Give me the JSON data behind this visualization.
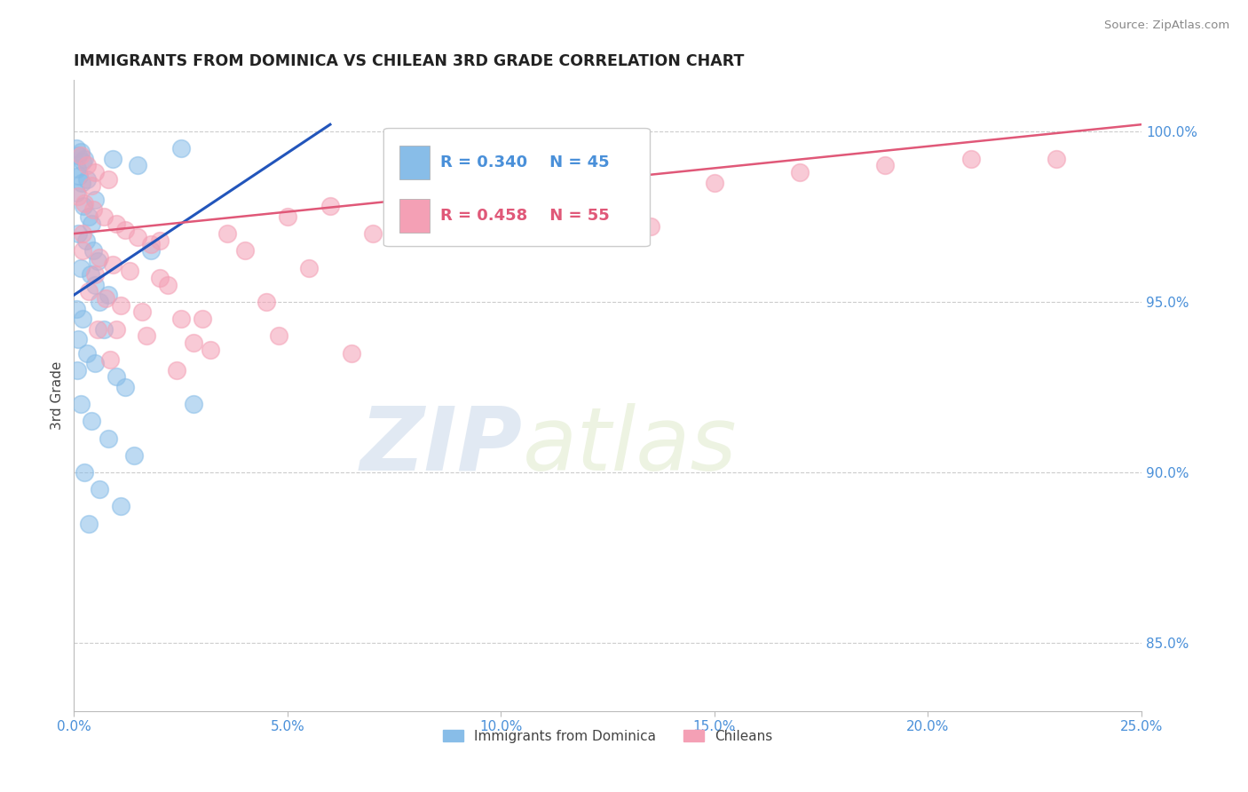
{
  "title": "IMMIGRANTS FROM DOMINICA VS CHILEAN 3RD GRADE CORRELATION CHART",
  "source": "Source: ZipAtlas.com",
  "ylabel": "3rd Grade",
  "xlim": [
    0.0,
    25.0
  ],
  "ylim": [
    83.0,
    101.5
  ],
  "yticks_right": [
    85.0,
    90.0,
    95.0,
    100.0
  ],
  "ytick_labels_right": [
    "85.0%",
    "90.0%",
    "95.0%",
    "100.0%"
  ],
  "xticks": [
    0.0,
    5.0,
    10.0,
    15.0,
    20.0,
    25.0
  ],
  "xtick_labels": [
    "0.0%",
    "5.0%",
    "10.0%",
    "15.0%",
    "20.0%",
    "25.0%"
  ],
  "legend_blue_label": "Immigrants from Dominica",
  "legend_pink_label": "Chileans",
  "R_blue": 0.34,
  "N_blue": 45,
  "R_pink": 0.458,
  "N_pink": 55,
  "blue_color": "#88bde8",
  "pink_color": "#f4a0b5",
  "blue_line_color": "#2255bb",
  "pink_line_color": "#e05878",
  "watermark_zip": "ZIP",
  "watermark_atlas": "atlas",
  "blue_dots": [
    [
      0.05,
      99.5
    ],
    [
      0.1,
      99.3
    ],
    [
      0.15,
      99.4
    ],
    [
      0.2,
      99.1
    ],
    [
      0.25,
      99.2
    ],
    [
      0.08,
      98.9
    ],
    [
      0.12,
      98.7
    ],
    [
      0.18,
      98.5
    ],
    [
      0.3,
      98.6
    ],
    [
      0.05,
      98.2
    ],
    [
      0.22,
      97.8
    ],
    [
      0.35,
      97.5
    ],
    [
      0.4,
      97.3
    ],
    [
      0.1,
      97.0
    ],
    [
      0.28,
      96.8
    ],
    [
      0.45,
      96.5
    ],
    [
      0.55,
      96.2
    ],
    [
      0.15,
      96.0
    ],
    [
      0.38,
      95.8
    ],
    [
      0.5,
      95.5
    ],
    [
      0.8,
      95.2
    ],
    [
      0.6,
      95.0
    ],
    [
      0.05,
      94.8
    ],
    [
      0.2,
      94.5
    ],
    [
      0.7,
      94.2
    ],
    [
      0.1,
      93.9
    ],
    [
      0.3,
      93.5
    ],
    [
      0.5,
      93.2
    ],
    [
      1.0,
      92.8
    ],
    [
      1.2,
      92.5
    ],
    [
      0.15,
      92.0
    ],
    [
      0.4,
      91.5
    ],
    [
      0.8,
      91.0
    ],
    [
      1.4,
      90.5
    ],
    [
      0.25,
      90.0
    ],
    [
      0.6,
      89.5
    ],
    [
      1.1,
      89.0
    ],
    [
      0.35,
      88.5
    ],
    [
      0.08,
      93.0
    ],
    [
      1.5,
      99.0
    ],
    [
      0.9,
      99.2
    ],
    [
      0.5,
      98.0
    ],
    [
      2.5,
      99.5
    ],
    [
      1.8,
      96.5
    ],
    [
      2.8,
      92.0
    ]
  ],
  "pink_dots": [
    [
      0.15,
      99.3
    ],
    [
      0.3,
      99.0
    ],
    [
      0.5,
      98.8
    ],
    [
      0.8,
      98.6
    ],
    [
      0.4,
      98.4
    ],
    [
      0.1,
      98.1
    ],
    [
      0.25,
      97.9
    ],
    [
      0.45,
      97.7
    ],
    [
      0.7,
      97.5
    ],
    [
      1.0,
      97.3
    ],
    [
      1.2,
      97.1
    ],
    [
      1.5,
      96.9
    ],
    [
      1.8,
      96.7
    ],
    [
      0.2,
      96.5
    ],
    [
      0.6,
      96.3
    ],
    [
      0.9,
      96.1
    ],
    [
      1.3,
      95.9
    ],
    [
      2.0,
      95.7
    ],
    [
      2.2,
      95.5
    ],
    [
      0.35,
      95.3
    ],
    [
      0.75,
      95.1
    ],
    [
      1.1,
      94.9
    ],
    [
      1.6,
      94.7
    ],
    [
      2.5,
      94.5
    ],
    [
      0.55,
      94.2
    ],
    [
      1.7,
      94.0
    ],
    [
      2.8,
      93.8
    ],
    [
      3.2,
      93.6
    ],
    [
      0.85,
      93.3
    ],
    [
      2.4,
      93.0
    ],
    [
      3.6,
      97.0
    ],
    [
      4.0,
      96.5
    ],
    [
      5.0,
      97.5
    ],
    [
      6.0,
      97.8
    ],
    [
      4.5,
      95.0
    ],
    [
      5.5,
      96.0
    ],
    [
      7.0,
      97.0
    ],
    [
      8.0,
      97.5
    ],
    [
      9.0,
      98.0
    ],
    [
      10.0,
      97.5
    ],
    [
      11.0,
      97.8
    ],
    [
      12.0,
      98.0
    ],
    [
      13.5,
      97.2
    ],
    [
      15.0,
      98.5
    ],
    [
      17.0,
      98.8
    ],
    [
      19.0,
      99.0
    ],
    [
      21.0,
      99.2
    ],
    [
      23.0,
      99.2
    ],
    [
      3.0,
      94.5
    ],
    [
      4.8,
      94.0
    ],
    [
      6.5,
      93.5
    ],
    [
      0.2,
      97.0
    ],
    [
      2.0,
      96.8
    ],
    [
      0.5,
      95.8
    ],
    [
      1.0,
      94.2
    ]
  ]
}
